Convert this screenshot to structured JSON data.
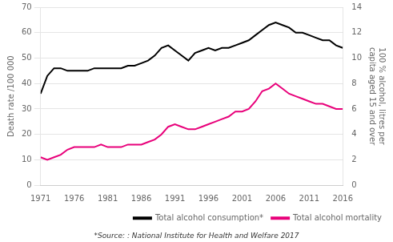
{
  "chart_data": {
    "type": "line",
    "x": [
      1971,
      1972,
      1973,
      1974,
      1975,
      1976,
      1977,
      1978,
      1979,
      1980,
      1981,
      1982,
      1983,
      1984,
      1985,
      1986,
      1987,
      1988,
      1989,
      1990,
      1991,
      1992,
      1993,
      1994,
      1995,
      1996,
      1997,
      1998,
      1999,
      2000,
      2001,
      2002,
      2003,
      2004,
      2005,
      2006,
      2007,
      2008,
      2009,
      2010,
      2011,
      2012,
      2013,
      2014,
      2015,
      2016
    ],
    "series": [
      {
        "name": "Total alcohol consumption*",
        "color": "#000000",
        "axis": "y2",
        "values": [
          7.2,
          8.6,
          9.2,
          9.2,
          9.0,
          9.0,
          9.0,
          9.0,
          9.2,
          9.2,
          9.2,
          9.2,
          9.2,
          9.4,
          9.4,
          9.6,
          9.8,
          10.2,
          10.8,
          11.0,
          10.6,
          10.2,
          9.8,
          10.4,
          10.6,
          10.8,
          10.6,
          10.8,
          10.8,
          11.0,
          11.2,
          11.4,
          11.8,
          12.2,
          12.6,
          12.8,
          12.6,
          12.4,
          12.0,
          12.0,
          11.8,
          11.6,
          11.4,
          11.4,
          11.0,
          10.8
        ]
      },
      {
        "name": "Total alcohol mortality",
        "color": "#e8007a",
        "values": [
          11,
          10,
          11,
          12,
          14,
          15,
          15,
          15,
          15,
          16,
          15,
          15,
          15,
          16,
          16,
          16,
          17,
          18,
          20,
          23,
          24,
          23,
          22,
          22,
          23,
          24,
          25,
          26,
          27,
          29,
          29,
          30,
          33,
          37,
          38,
          40,
          38,
          36,
          35,
          34,
          33,
          32,
          32,
          31,
          30,
          30
        ]
      }
    ],
    "xlim": [
      1971,
      2016
    ],
    "xticks": [
      1971,
      1976,
      1981,
      1986,
      1991,
      1996,
      2001,
      2006,
      2011,
      2016
    ],
    "ylim": [
      0,
      70
    ],
    "yticks": [
      0,
      10,
      20,
      30,
      40,
      50,
      60,
      70
    ],
    "y2lim": [
      0,
      14
    ],
    "y2ticks": [
      0,
      2,
      4,
      6,
      8,
      10,
      12,
      14
    ],
    "ylabel": "Death rate /100 000",
    "y2label": "100 % alcohol, litres per\ncapita aged 15 and over",
    "annotations": [
      "*Source: : National Institute for Health and Welfare 2017"
    ],
    "legend": "lower right",
    "grid": true
  }
}
